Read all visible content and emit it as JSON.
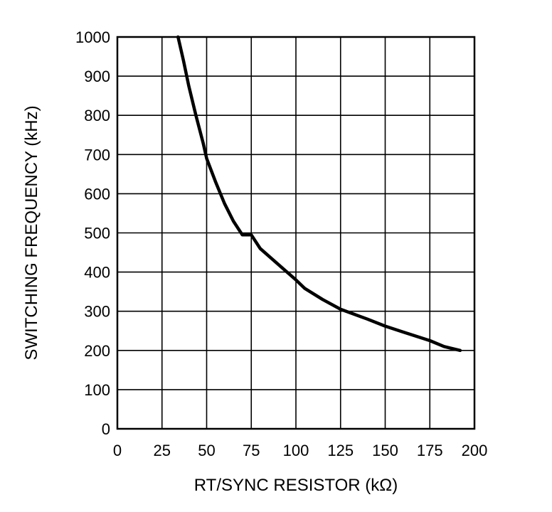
{
  "chart_data": {
    "type": "line",
    "title": "",
    "xlabel": "RT/SYNC RESISTOR (kΩ)",
    "ylabel": "SWITCHING FREQUENCY (kHz)",
    "xlim": [
      0,
      200
    ],
    "ylim": [
      0,
      1000
    ],
    "xticks": [
      0,
      25,
      50,
      75,
      100,
      125,
      150,
      175,
      200
    ],
    "yticks": [
      0,
      100,
      200,
      300,
      400,
      500,
      600,
      700,
      800,
      900,
      1000
    ],
    "xtick_labels": [
      "0",
      "25",
      "50",
      "75",
      "100",
      "125",
      "150",
      "175",
      "200"
    ],
    "ytick_labels": [
      "0",
      "100",
      "200",
      "300",
      "400",
      "500",
      "600",
      "700",
      "800",
      "900",
      "1000"
    ],
    "grid": true,
    "colors": {
      "line": "#000000",
      "grid": "#000000",
      "background": "#ffffff"
    },
    "series": [
      {
        "x": [
          34,
          37,
          40,
          44,
          48,
          50,
          55,
          60,
          65,
          70,
          75,
          80,
          90,
          100,
          105,
          115,
          125,
          140,
          150,
          160,
          175,
          183,
          192
        ],
        "y": [
          1000,
          940,
          875,
          800,
          730,
          690,
          630,
          575,
          530,
          495,
          495,
          460,
          420,
          380,
          358,
          330,
          305,
          280,
          262,
          247,
          225,
          210,
          200
        ]
      }
    ]
  }
}
